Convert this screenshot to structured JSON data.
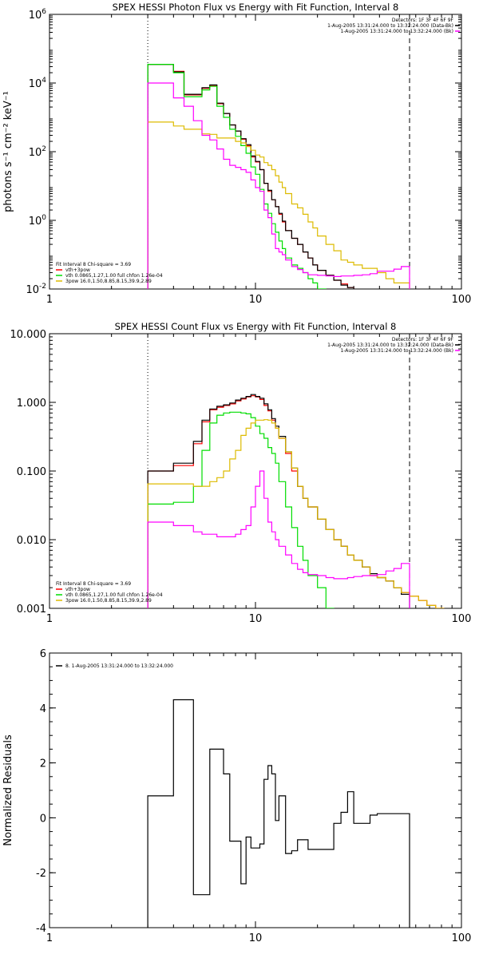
{
  "chart_data": [
    {
      "type": "line",
      "title": "SPEX HESSI Photon Flux vs Energy with Fit Function, Interval 8",
      "ylabel": "photons s⁻¹ cm⁻² keV⁻¹",
      "xlabel": "",
      "xscale": "log",
      "yscale": "log",
      "xlim": [
        1,
        100
      ],
      "ylim": [
        0.01,
        1000000
      ],
      "xticks": [
        "1",
        "10",
        "100"
      ],
      "yticks": [
        {
          "v": 0.01,
          "b": "10",
          "e": "-2"
        },
        {
          "v": 1,
          "b": "10",
          "e": "0"
        },
        {
          "v": 100,
          "b": "10",
          "e": "2"
        },
        {
          "v": 10000,
          "b": "10",
          "e": "4"
        },
        {
          "v": 1000000,
          "b": "10",
          "e": "6"
        }
      ],
      "vlines": [
        {
          "x": 3.0,
          "style": "dotted"
        },
        {
          "x": 56,
          "style": "dashed"
        }
      ],
      "header_lines": [
        "Detectors: 1F 3F 4F 6F 9F",
        "1-Aug-2005 13:31:24.000 to 13:32:24.000 (Data-Bk)",
        "1-Aug-2005 13:31:24.000 to 13:32:24.000 (Bk)"
      ],
      "header_colors": [
        "",
        "#000000",
        "#ff00ff"
      ],
      "legend": {
        "lines": [
          {
            "text": "Fit Interval  8    Chi-square = 3.69",
            "color": ""
          },
          {
            "text": "vth+3pow",
            "color": "#ff0000"
          },
          {
            "text": "vth 0.0865,1.27,1.00  full chfon 1.26e-04",
            "color": "#00dd00"
          },
          {
            "text": "3pow 16.0,1.50,8.85,8.15,39.9,2.89",
            "color": "#ddbb00"
          }
        ]
      },
      "edges": [
        3.0,
        3.5,
        4.0,
        4.5,
        5.0,
        5.5,
        6.0,
        6.5,
        7.0,
        7.5,
        8.0,
        8.5,
        9.0,
        9.5,
        10.0,
        10.5,
        11.0,
        11.5,
        12.0,
        12.5,
        13.0,
        13.5,
        14.0,
        15.0,
        16.0,
        17.0,
        18.0,
        19.0,
        20.0,
        22.0,
        24.0,
        26.0,
        28.0,
        30.0,
        33.0,
        36.0,
        39.0,
        43.0,
        47.0,
        51.0,
        56.0
      ],
      "series": [
        {
          "name": "vth+3pow",
          "color": "#ff0000",
          "values": [
            35000,
            35000,
            22000,
            4500,
            4500,
            7000,
            8500,
            2500,
            1300,
            600,
            400,
            230,
            150,
            70,
            50,
            30,
            12,
            7,
            4,
            2.5,
            1.5,
            0.9,
            0.5,
            0.3,
            0.2,
            0.12,
            0.08,
            0.05,
            0.035,
            0.025,
            0.018,
            0.014,
            0.011,
            0.009,
            0.008,
            0.007,
            0.007,
            0.009,
            0.006,
            0.004
          ]
        },
        {
          "name": "",
          "color": "#000000",
          "values": [
            35000,
            35000,
            21000,
            4700,
            4700,
            7300,
            8800,
            2600,
            1300,
            600,
            400,
            240,
            160,
            75,
            52,
            30,
            12,
            7.5,
            4,
            2.5,
            1.6,
            0.95,
            0.5,
            0.3,
            0.2,
            0.12,
            0.08,
            0.05,
            0.035,
            0.025,
            0.018,
            0.013,
            0.011,
            0.009,
            0.008,
            0.008,
            0.007,
            0.007,
            0.005,
            0.004
          ]
        },
        {
          "name": "",
          "color": "#00dd00",
          "values": [
            35000,
            35000,
            20000,
            4000,
            4000,
            6300,
            8000,
            2100,
            1000,
            450,
            280,
            150,
            90,
            36,
            22,
            8,
            3,
            1.6,
            0.8,
            0.45,
            0.25,
            0.15,
            0.08,
            0.05,
            0.04,
            0.03,
            0.02,
            0.015,
            0.01,
            0.005
          ]
        },
        {
          "name": "",
          "color": "#ddbb00",
          "values": [
            730,
            730,
            560,
            450,
            450,
            330,
            320,
            250,
            250,
            250,
            200,
            180,
            140,
            110,
            80,
            70,
            48,
            40,
            30,
            20,
            13,
            9,
            6,
            3,
            2.3,
            1.5,
            0.9,
            0.6,
            0.35,
            0.2,
            0.13,
            0.07,
            0.06,
            0.05,
            0.04,
            0.04,
            0.03,
            0.02,
            0.015,
            0.015
          ]
        },
        {
          "name": "",
          "color": "#ff00ff",
          "values": [
            10000,
            10000,
            3700,
            2100,
            800,
            300,
            220,
            120,
            60,
            40,
            35,
            30,
            25,
            15,
            9,
            7,
            2,
            1.2,
            0.4,
            0.15,
            0.12,
            0.1,
            0.07,
            0.045,
            0.037,
            0.03,
            0.026,
            0.026,
            0.025,
            0.024,
            0.023,
            0.024,
            0.024,
            0.025,
            0.026,
            0.028,
            0.033,
            0.033,
            0.038,
            0.045
          ]
        }
      ]
    },
    {
      "type": "line",
      "title": "SPEX HESSI Count Flux vs Energy with Fit Function, Interval 8",
      "ylabel": "",
      "xlabel": "",
      "xscale": "log",
      "yscale": "log",
      "xlim": [
        1,
        100
      ],
      "ylim": [
        0.001,
        10
      ],
      "xticks": [
        "1",
        "10",
        "100"
      ],
      "yticks": [
        {
          "v": 0.001,
          "t": "0.001"
        },
        {
          "v": 0.01,
          "t": "0.010"
        },
        {
          "v": 0.1,
          "t": "0.100"
        },
        {
          "v": 1,
          "t": "1.000"
        },
        {
          "v": 10,
          "t": "10.000"
        }
      ],
      "vlines": [
        {
          "x": 3.0,
          "style": "dotted"
        },
        {
          "x": 56,
          "style": "dashed"
        }
      ],
      "header_lines": [
        "Detectors: 1F 3F 4F 6F 9F",
        "1-Aug-2005 13:31:24.000 to 13:32:24.000 (Data-Bk)",
        "1-Aug-2005 13:31:24.000 to 13:32:24.000 (Bk)"
      ],
      "header_colors": [
        "",
        "#000000",
        "#ff00ff"
      ],
      "legend": {
        "lines": [
          {
            "text": "Fit Interval  8    Chi-square = 3.69",
            "color": ""
          },
          {
            "text": "vth+3pow",
            "color": "#ff0000"
          },
          {
            "text": "vth 0.0865,1.27,1.00  full chfon 1.26e-04",
            "color": "#00dd00"
          },
          {
            "text": "3pow 16.0,1.50,8.85,8.15,39.9,2.89",
            "color": "#ddbb00"
          }
        ]
      },
      "edges": [
        3.0,
        4.0,
        5.0,
        5.5,
        6.0,
        6.5,
        7.0,
        7.5,
        8.0,
        8.5,
        9.0,
        9.5,
        10.0,
        10.5,
        11.0,
        11.5,
        12.0,
        12.5,
        13.0,
        14.0,
        15.0,
        16.0,
        17.0,
        18.0,
        20.0,
        22.0,
        24.0,
        26.0,
        28.0,
        30.0,
        33.0,
        36.0,
        39.0,
        43.0,
        47.0,
        51.0,
        56.0,
        62.0,
        68.0,
        75.0,
        82.0
      ],
      "series": [
        {
          "name": "vth+3pow",
          "color": "#ff0000",
          "values": [
            0.1,
            0.12,
            0.25,
            0.52,
            0.78,
            0.85,
            0.9,
            0.95,
            1.05,
            1.12,
            1.2,
            1.25,
            1.2,
            1.1,
            0.9,
            0.75,
            0.55,
            0.42,
            0.3,
            0.18,
            0.1,
            0.06,
            0.04,
            0.03,
            0.02,
            0.014,
            0.01,
            0.008,
            0.006,
            0.005,
            0.004,
            0.003,
            0.0028,
            0.0025,
            0.002,
            0.0017,
            0.0015,
            0.0013,
            0.0011,
            0.001
          ]
        },
        {
          "name": "",
          "color": "#000000",
          "values": [
            0.1,
            0.13,
            0.27,
            0.55,
            0.8,
            0.88,
            0.92,
            0.98,
            1.08,
            1.15,
            1.22,
            1.3,
            1.22,
            1.15,
            0.95,
            0.78,
            0.58,
            0.45,
            0.32,
            0.19,
            0.11,
            0.06,
            0.04,
            0.03,
            0.02,
            0.014,
            0.01,
            0.008,
            0.006,
            0.005,
            0.004,
            0.0032,
            0.0028,
            0.0025,
            0.002,
            0.0016
          ]
        },
        {
          "name": "",
          "color": "#00dd00",
          "values": [
            0.033,
            0.035,
            0.06,
            0.2,
            0.5,
            0.65,
            0.7,
            0.72,
            0.72,
            0.7,
            0.68,
            0.6,
            0.45,
            0.35,
            0.3,
            0.22,
            0.18,
            0.13,
            0.07,
            0.03,
            0.015,
            0.008,
            0.005,
            0.003,
            0.002,
            0.001
          ]
        },
        {
          "name": "",
          "color": "#ddbb00",
          "values": [
            0.065,
            0.065,
            0.06,
            0.06,
            0.07,
            0.08,
            0.1,
            0.15,
            0.2,
            0.33,
            0.42,
            0.5,
            0.55,
            0.55,
            0.56,
            0.55,
            0.5,
            0.42,
            0.3,
            0.19,
            0.11,
            0.06,
            0.04,
            0.03,
            0.02,
            0.014,
            0.01,
            0.008,
            0.006,
            0.005,
            0.004,
            0.003,
            0.0028,
            0.0025,
            0.002,
            0.0017,
            0.0015,
            0.0013,
            0.0011,
            0.001
          ]
        },
        {
          "name": "",
          "color": "#ff00ff",
          "values": [
            0.018,
            0.016,
            0.013,
            0.012,
            0.012,
            0.011,
            0.011,
            0.011,
            0.012,
            0.014,
            0.016,
            0.03,
            0.06,
            0.1,
            0.04,
            0.018,
            0.013,
            0.01,
            0.008,
            0.006,
            0.0045,
            0.0037,
            0.0033,
            0.0031,
            0.003,
            0.0028,
            0.0027,
            0.0027,
            0.0028,
            0.0029,
            0.003,
            0.003,
            0.0031,
            0.0035,
            0.0038,
            0.0045
          ]
        }
      ]
    },
    {
      "type": "line",
      "title": "",
      "ylabel": "Normalized Residuals",
      "xlabel": "",
      "xscale": "log",
      "yscale": "linear",
      "xlim": [
        1,
        100
      ],
      "ylim": [
        -4,
        6
      ],
      "xticks": [
        "1",
        "10",
        "100"
      ],
      "yticks": [
        {
          "v": -4,
          "t": "-4"
        },
        {
          "v": -2,
          "t": "-2"
        },
        {
          "v": 0,
          "t": "0"
        },
        {
          "v": 2,
          "t": "2"
        },
        {
          "v": 4,
          "t": "4"
        },
        {
          "v": 6,
          "t": "6"
        }
      ],
      "vlines": [],
      "header_lines": [],
      "legend": {
        "lines": [
          {
            "text": "8.  1-Aug-2005 13:31:24.000 to 13:32:24.000",
            "color": "#000000"
          }
        ]
      },
      "edges": [
        3.0,
        3.5,
        4.0,
        4.5,
        5.0,
        5.5,
        6.0,
        6.5,
        7.0,
        7.5,
        8.0,
        8.5,
        9.0,
        9.5,
        10.0,
        10.5,
        11.0,
        11.5,
        12.0,
        12.5,
        13.0,
        14.0,
        15.0,
        16.0,
        17.0,
        18.0,
        20.0,
        22.0,
        24.0,
        26.0,
        28.0,
        30.0,
        33.0,
        36.0,
        39.0,
        43.0,
        47.0,
        51.0,
        56.0
      ],
      "series": [
        {
          "name": "8.  1-Aug-2005 13:31:24.000 to 13:32:24.000",
          "color": "#000000",
          "values": [
            0.8,
            0.8,
            4.3,
            4.3,
            -2.8,
            -2.8,
            2.5,
            2.5,
            1.6,
            -0.85,
            -0.85,
            -2.4,
            -0.7,
            -1.1,
            -1.1,
            -0.95,
            1.4,
            1.9,
            1.6,
            -0.1,
            0.8,
            -1.3,
            -1.2,
            -0.8,
            -0.8,
            -1.15,
            -1.15,
            -1.15,
            -0.2,
            0.2,
            0.95,
            -0.2,
            -0.2,
            0.1,
            0.15,
            0.15,
            0.15,
            0.15
          ]
        }
      ]
    }
  ]
}
